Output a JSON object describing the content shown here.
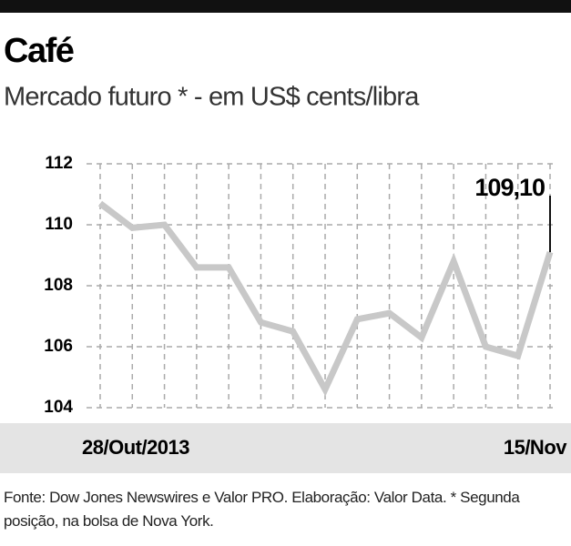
{
  "chart_data": {
    "type": "line",
    "title": "Café",
    "subtitle": "Mercado futuro * - em US$ cents/libra",
    "categories": [
      "28/Out/2013",
      null,
      null,
      null,
      null,
      null,
      null,
      null,
      null,
      null,
      null,
      null,
      null,
      null,
      "15/Nov"
    ],
    "series": [
      {
        "name": "Café",
        "color": "#c8c8c8",
        "values": [
          110.7,
          109.9,
          110.0,
          108.6,
          108.6,
          106.8,
          106.5,
          104.6,
          106.9,
          107.1,
          106.3,
          108.8,
          106.0,
          105.7,
          109.1
        ],
        "value_labels": [
          null,
          null,
          null,
          null,
          null,
          null,
          null,
          null,
          null,
          null,
          null,
          null,
          null,
          null,
          "109,10"
        ]
      }
    ],
    "ylim": [
      104,
      112
    ],
    "yticks": [
      104,
      106,
      108,
      110,
      112
    ],
    "grid": true,
    "source": "Fonte: Dow Jones Newswires e Valor PRO. Elaboração: Valor Data. * Segunda posição, na bolsa de Nova York."
  }
}
